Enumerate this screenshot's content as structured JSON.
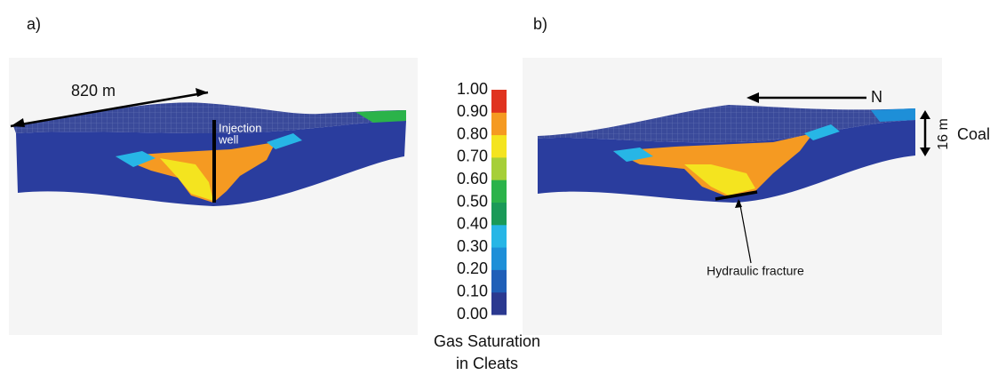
{
  "panels": [
    {
      "label": "a)",
      "annotations": {
        "distance": "820 m",
        "well": [
          "Injection",
          "well"
        ]
      }
    },
    {
      "label": "b)",
      "annotations": {
        "north": "N",
        "thickness": "16 m",
        "layer": "Coal",
        "fracture": "Hydraulic fracture"
      }
    }
  ],
  "colorbar": {
    "ticks": [
      "0.00",
      "0.10",
      "0.20",
      "0.30",
      "0.40",
      "0.50",
      "0.60",
      "0.70",
      "0.80",
      "0.90",
      "1.00"
    ],
    "colors": [
      "#2b3990",
      "#1f5fb8",
      "#1e8fd8",
      "#27b6e6",
      "#1a9a58",
      "#2bb34a",
      "#a6cf38",
      "#f4e41f",
      "#f59a22",
      "#e0331f"
    ],
    "title": [
      "Gas Saturation",
      "in Cleats"
    ]
  }
}
